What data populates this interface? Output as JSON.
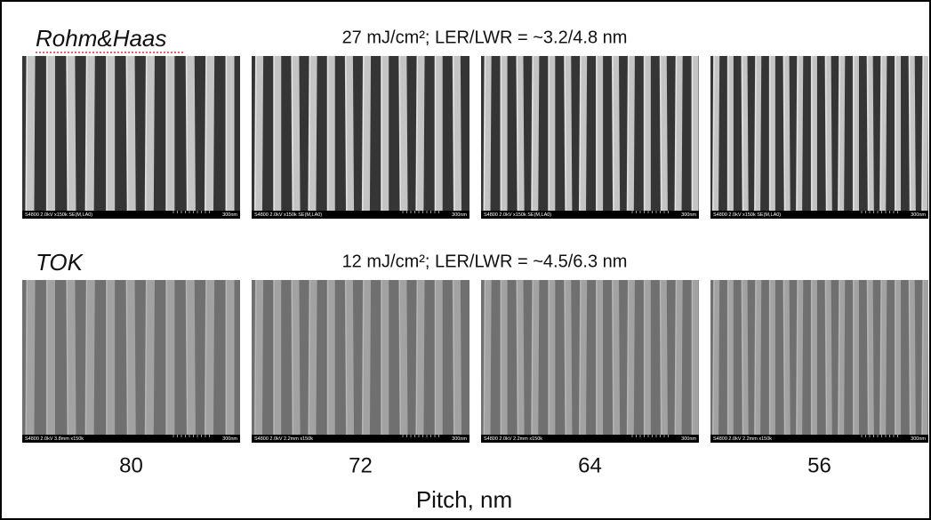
{
  "rows": [
    {
      "label": "Rohm&Haas",
      "condition": "27 mJ/cm²; LER/LWR = ~3.2/4.8 nm",
      "images": [
        {
          "info": "S4800 2.0kV x150k SE(M,LA0)",
          "scale": "300nm"
        },
        {
          "info": "S4800 2.0kV x150k SE(M,LA0)",
          "scale": "300nm"
        },
        {
          "info": "S4800 2.0kV x150k SE(M,LA0)",
          "scale": "300nm"
        },
        {
          "info": "S4800 2.0kV x150k SE(M,LA0)",
          "scale": "300nm"
        }
      ]
    },
    {
      "label": "TOK",
      "condition": "12 mJ/cm²; LER/LWR = ~4.5/6.3 nm",
      "images": [
        {
          "info": "S4800 2.0kV 3.8mm x150k",
          "scale": "300nm"
        },
        {
          "info": "S4800 2.0kV 2.2mm x150k",
          "scale": "300nm"
        },
        {
          "info": "S4800 2.0kV 2.2mm x150k",
          "scale": "300nm"
        },
        {
          "info": "S4800 2.0kV 2.2mm x150k",
          "scale": "300nm"
        }
      ]
    }
  ],
  "pitches": [
    80,
    72,
    64,
    56
  ],
  "axis_label": "Pitch, nm"
}
